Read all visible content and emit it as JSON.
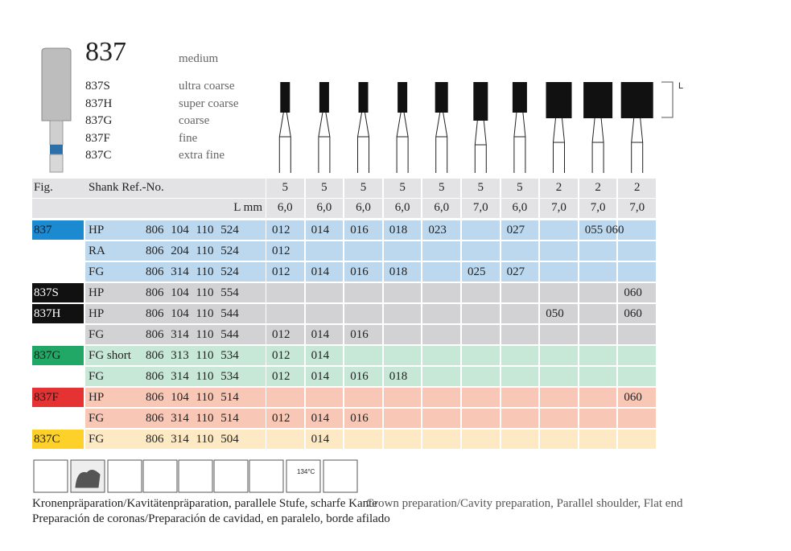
{
  "header": {
    "model": "837",
    "grit": "medium",
    "variants": [
      {
        "code": "837S",
        "grit": "ultra coarse"
      },
      {
        "code": "837H",
        "grit": "super coarse"
      },
      {
        "code": "837G",
        "grit": "coarse"
      },
      {
        "code": "837F",
        "grit": "fine"
      },
      {
        "code": "837C",
        "grit": "extra fine"
      }
    ],
    "length_label": "L"
  },
  "table": {
    "fig_label": "Fig.",
    "shank_label": "Shank Ref.-No.",
    "length_unit": "L mm",
    "pack": [
      "5",
      "5",
      "5",
      "5",
      "5",
      "5",
      "5",
      "2",
      "2",
      "2"
    ],
    "lengths": [
      "6,0",
      "6,0",
      "6,0",
      "6,0",
      "6,0",
      "7,0",
      "6,0",
      "7,0",
      "7,0",
      "7,0"
    ],
    "rows": [
      {
        "group": "837",
        "fill": "#bcd8ef",
        "label_fill": "#1b8ad1",
        "label_color": "#1a1a1a",
        "shank": "HP",
        "ref": "806 104 110 524",
        "cells": [
          "012",
          "014",
          "016",
          "018",
          "023",
          null,
          "027",
          null,
          "055 060",
          null
        ]
      },
      {
        "group": null,
        "fill": "#bcd8ef",
        "shank": "RA",
        "ref": "806 204 110 524",
        "cells": [
          "012",
          null,
          null,
          null,
          null,
          null,
          null,
          null,
          null,
          null
        ]
      },
      {
        "group": null,
        "fill": "#bcd8ef",
        "shank": "FG",
        "ref": "806 314 110 524",
        "cells": [
          "012",
          "014",
          "016",
          "018",
          null,
          "025",
          "027",
          null,
          null,
          null
        ]
      },
      {
        "group": "837S",
        "fill": "#d2d2d4",
        "label_fill": "#111111",
        "label_color": "#ffffff",
        "shank": "HP",
        "ref": "806 104 110 554",
        "cells": [
          null,
          null,
          null,
          null,
          null,
          null,
          null,
          null,
          null,
          "060"
        ]
      },
      {
        "group": "837H",
        "fill": "#d2d2d4",
        "label_fill": "#111111",
        "label_color": "#ffffff",
        "shank": "HP",
        "ref": "806 104 110 544",
        "cells": [
          null,
          null,
          null,
          null,
          null,
          null,
          null,
          "050",
          null,
          "060"
        ]
      },
      {
        "group": null,
        "fill": "#d2d2d4",
        "shank": "FG",
        "ref": "806 314 110 544",
        "cells": [
          "012",
          "014",
          "016",
          null,
          null,
          null,
          null,
          null,
          null,
          null
        ]
      },
      {
        "group": "837G",
        "fill": "#c8e8d7",
        "label_fill": "#22a866",
        "label_color": "#1a1a1a",
        "shank": "FG short",
        "ref": "806 313 110 534",
        "cells": [
          "012",
          "014",
          null,
          null,
          null,
          null,
          null,
          null,
          null,
          null
        ]
      },
      {
        "group": null,
        "fill": "#c8e8d7",
        "shank": "FG",
        "ref": "806 314 110 534",
        "cells": [
          "012",
          "014",
          "016",
          "018",
          null,
          null,
          null,
          null,
          null,
          null
        ]
      },
      {
        "group": "837F",
        "fill": "#f8c7b5",
        "label_fill": "#e53232",
        "label_color": "#1a1a1a",
        "shank": "HP",
        "ref": "806 104 110 514",
        "cells": [
          null,
          null,
          null,
          null,
          null,
          null,
          null,
          null,
          null,
          "060"
        ]
      },
      {
        "group": null,
        "fill": "#f8c7b5",
        "shank": "FG",
        "ref": "806 314 110 514",
        "cells": [
          "012",
          "014",
          "016",
          null,
          null,
          null,
          null,
          null,
          null,
          null
        ]
      },
      {
        "group": "837C",
        "fill": "#fdeac4",
        "label_fill": "#fdd12a",
        "label_color": "#1a1a1a",
        "shank": "FG",
        "ref": "806 314 110 504",
        "cells": [
          null,
          "014",
          null,
          null,
          null,
          null,
          null,
          null,
          null,
          null
        ]
      }
    ]
  },
  "icons": {
    "sterilization": "134°C"
  },
  "footer": {
    "german": "Kronenpräparation/Kavitätenpräparation, parallele Stufe, scharfe Kante",
    "english": "Crown preparation/Cavity preparation, Parallel shoulder, Flat end",
    "spanish": "Preparación de coronas/Preparación de cavidad, en paralelo, borde afilado"
  }
}
